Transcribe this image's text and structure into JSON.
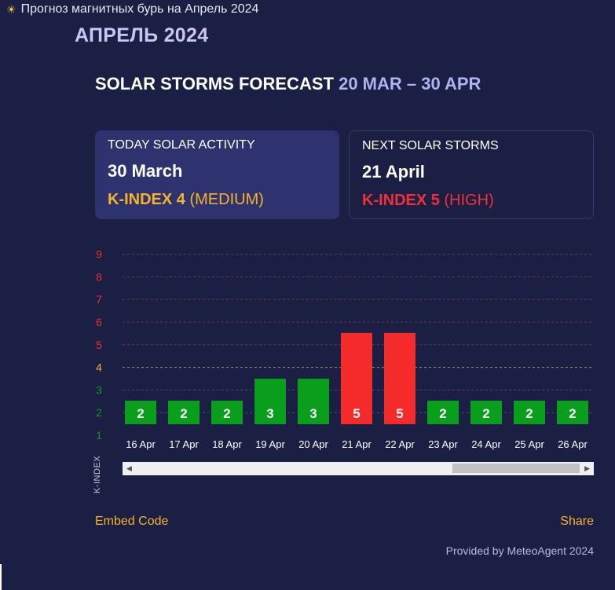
{
  "topbar": {
    "icon": "sun-icon",
    "title": "Прогноз магнитных бурь на Апрель 2024"
  },
  "month_title": "АПРЕЛЬ 2024",
  "headline": {
    "main": "SOLAR STORMS FORECAST",
    "range": "20 MAR – 30 APR"
  },
  "today": {
    "label": "TODAY SOLAR ACTIVITY",
    "date": "30 March",
    "kindex_label": "K-INDEX 4",
    "level": "(MEDIUM)"
  },
  "next": {
    "label": "NEXT SOLAR STORMS",
    "date": "21 April",
    "kindex_label": "K-INDEX 5",
    "level": "(HIGH)"
  },
  "colors": {
    "low": "#0a9e1d",
    "medium": "#f5b32a",
    "high": "#f52b2b",
    "background": "#1c1f44"
  },
  "chart_data": {
    "type": "bar",
    "ylabel": "K-INDEX",
    "ylim": [
      1,
      9
    ],
    "yticks": [
      1,
      2,
      3,
      4,
      5,
      6,
      7,
      8,
      9
    ],
    "categories": [
      "16 Apr",
      "17 Apr",
      "18 Apr",
      "19 Apr",
      "20 Apr",
      "21 Apr",
      "22 Apr",
      "23 Apr",
      "24 Apr",
      "25 Apr",
      "26 Apr"
    ],
    "values": [
      2,
      2,
      2,
      3,
      3,
      5,
      5,
      2,
      2,
      2,
      2
    ]
  },
  "footer": {
    "embed": "Embed Code",
    "share": "Share",
    "provided": "Provided by MeteoAgent 2024"
  }
}
